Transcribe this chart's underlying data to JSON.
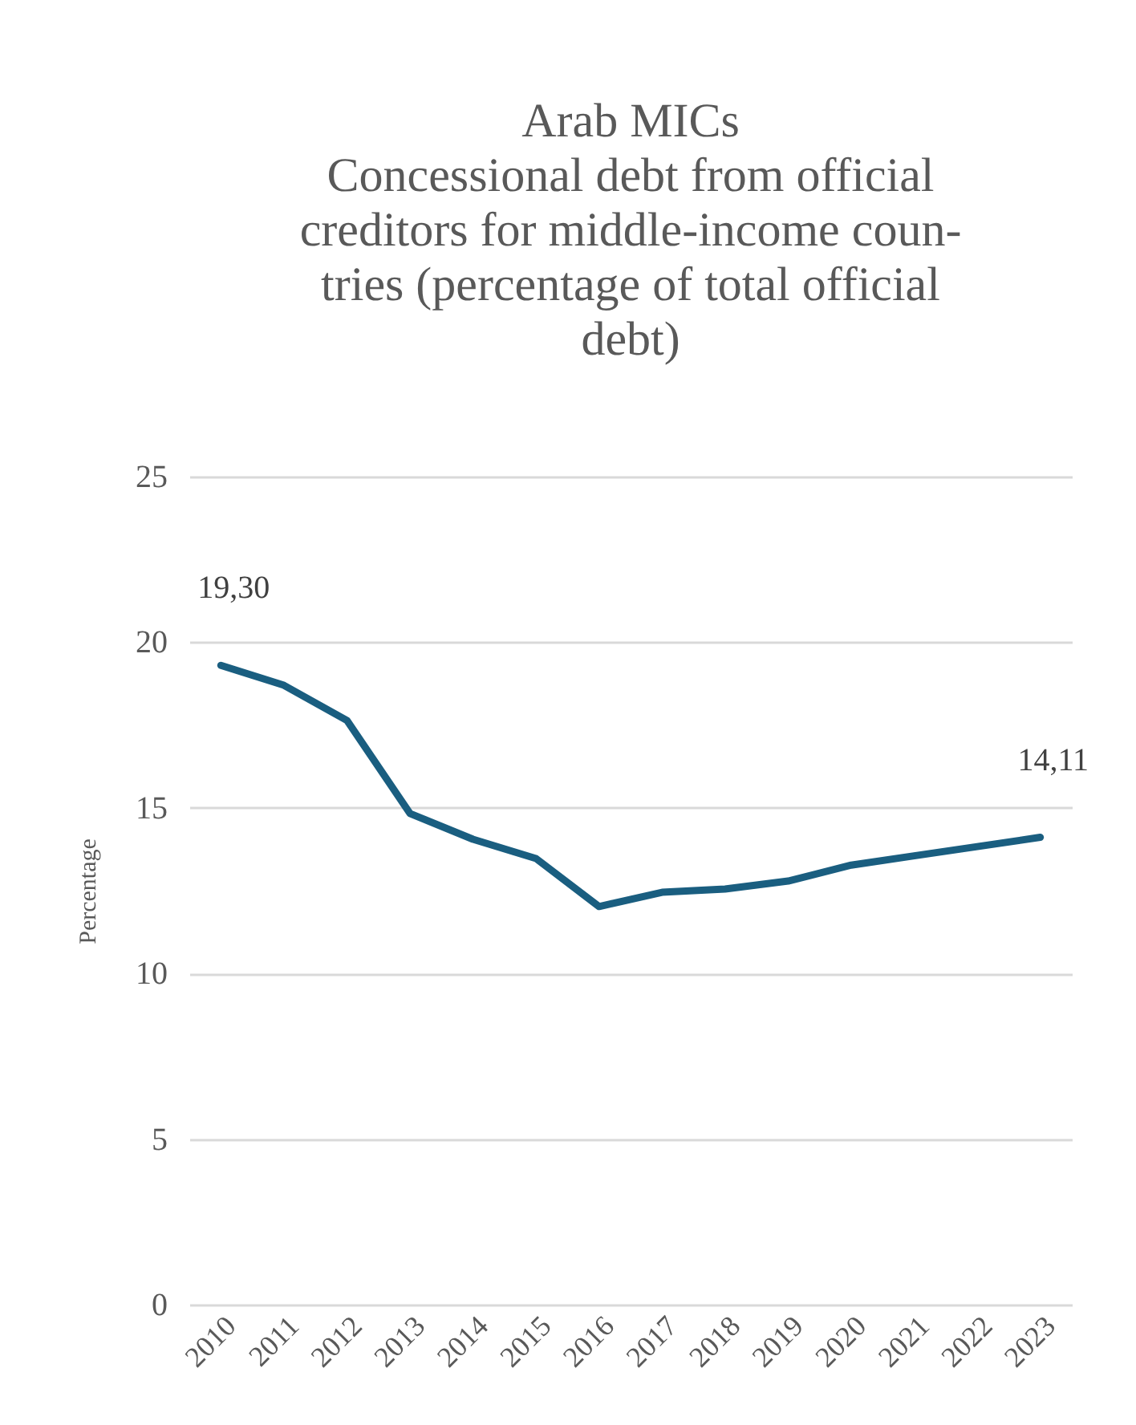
{
  "chart_data": {
    "type": "line",
    "title": "Arab MICs\nConcessional debt from official creditors for middle-income coun-\ntries (percentage of total official debt)",
    "ylabel": "Percentage",
    "categories": [
      "2010",
      "2011",
      "2012",
      "2013",
      "2014",
      "2015",
      "2016",
      "2017",
      "2018",
      "2019",
      "2020",
      "2021",
      "2022",
      "2023"
    ],
    "series": [
      {
        "color": "#1a5e80",
        "values": [
          19.3,
          18.7,
          17.64,
          14.83,
          14.05,
          13.47,
          12.02,
          12.45,
          12.55,
          12.79,
          13.27,
          13.55,
          13.83,
          14.11
        ],
        "value_labels": [
          "19,30",
          null,
          null,
          null,
          null,
          null,
          null,
          null,
          null,
          null,
          null,
          null,
          null,
          "14,11"
        ]
      }
    ],
    "ylim": [
      0,
      25
    ],
    "yticks": [
      0,
      5,
      10,
      15,
      20,
      25
    ],
    "grid": "y"
  }
}
